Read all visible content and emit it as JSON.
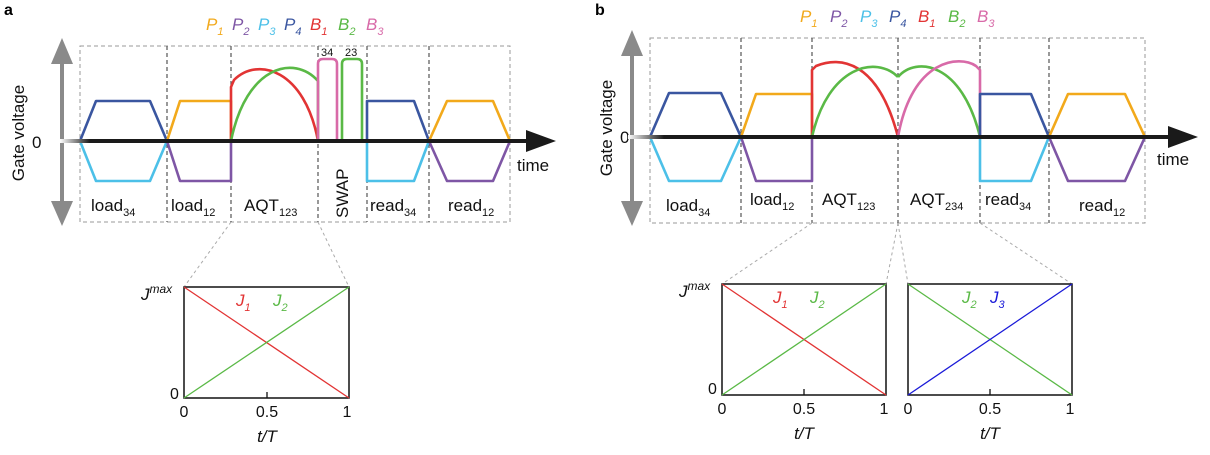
{
  "panels": [
    {
      "letter": "a",
      "legend": [
        {
          "base": "P",
          "sub": "1",
          "color": "#f2a91b"
        },
        {
          "base": "P",
          "sub": "2",
          "color": "#7e56a5"
        },
        {
          "base": "P",
          "sub": "3",
          "color": "#4cc0e8"
        },
        {
          "base": "P",
          "sub": "4",
          "color": "#3a56a0"
        },
        {
          "base": "B",
          "sub": "1",
          "color": "#e23434"
        },
        {
          "base": "B",
          "sub": "2",
          "color": "#5ab946"
        },
        {
          "base": "B",
          "sub": "3",
          "color": "#d86aa8"
        }
      ],
      "y_axis_label": "Gate voltage",
      "zero_label": "0",
      "x_axis_label": "time",
      "segments": [
        {
          "base": "load",
          "sub": "34"
        },
        {
          "base": "load",
          "sub": "12"
        },
        {
          "base": "AQT",
          "sub": "123"
        },
        {
          "base": "SWAP",
          "sub": "",
          "vertical": true
        },
        {
          "base": "read",
          "sub": "34"
        },
        {
          "base": "read",
          "sub": "12"
        }
      ],
      "swap_pulse_labels": [
        "34",
        "23"
      ],
      "plots": [
        {
          "y_top_label": "J",
          "y_top_sup": "max",
          "y_zero_label": "0",
          "x_ticks": [
            "0",
            "0.5",
            "1"
          ],
          "x_label": "t/T",
          "lines": [
            {
              "name": "J",
              "sub": "1",
              "color": "#e23434",
              "from": 1,
              "to": 0
            },
            {
              "name": "J",
              "sub": "2",
              "color": "#5ab946",
              "from": 0,
              "to": 1
            }
          ]
        }
      ]
    },
    {
      "letter": "b",
      "legend": [
        {
          "base": "P",
          "sub": "1",
          "color": "#f2a91b"
        },
        {
          "base": "P",
          "sub": "2",
          "color": "#7e56a5"
        },
        {
          "base": "P",
          "sub": "3",
          "color": "#4cc0e8"
        },
        {
          "base": "P",
          "sub": "4",
          "color": "#3a56a0"
        },
        {
          "base": "B",
          "sub": "1",
          "color": "#e23434"
        },
        {
          "base": "B",
          "sub": "2",
          "color": "#5ab946"
        },
        {
          "base": "B",
          "sub": "3",
          "color": "#d86aa8"
        }
      ],
      "y_axis_label": "Gate voltage",
      "zero_label": "0",
      "x_axis_label": "time",
      "segments": [
        {
          "base": "load",
          "sub": "34"
        },
        {
          "base": "load",
          "sub": "12"
        },
        {
          "base": "AQT",
          "sub": "123"
        },
        {
          "base": "AQT",
          "sub": "234"
        },
        {
          "base": "read",
          "sub": "34"
        },
        {
          "base": "read",
          "sub": "12"
        }
      ],
      "plots": [
        {
          "y_top_label": "J",
          "y_top_sup": "max",
          "y_zero_label": "0",
          "x_ticks": [
            "0",
            "0.5",
            "1"
          ],
          "x_label": "t/T",
          "lines": [
            {
              "name": "J",
              "sub": "1",
              "color": "#e23434",
              "from": 1,
              "to": 0
            },
            {
              "name": "J",
              "sub": "2",
              "color": "#5ab946",
              "from": 0,
              "to": 1
            }
          ]
        },
        {
          "x_ticks": [
            "0",
            "0.5",
            "1"
          ],
          "x_label": "t/T",
          "lines": [
            {
              "name": "J",
              "sub": "2",
              "color": "#5ab946",
              "from": 1,
              "to": 0
            },
            {
              "name": "J",
              "sub": "3",
              "color": "#1a1ad8",
              "from": 0,
              "to": 1
            }
          ]
        }
      ]
    }
  ]
}
